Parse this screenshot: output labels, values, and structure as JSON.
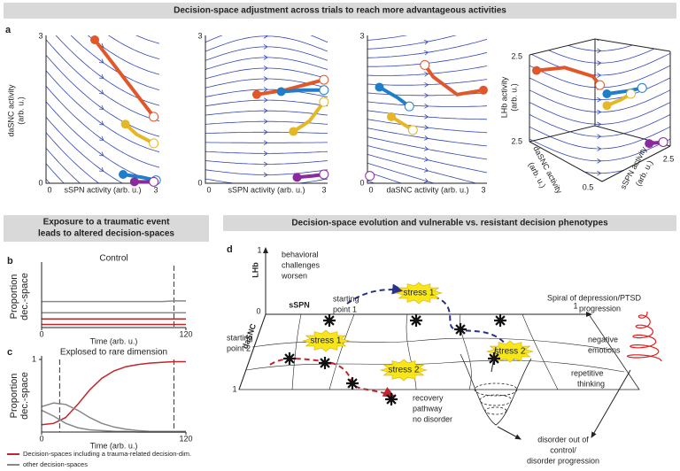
{
  "title": "Decision-space adjustment across trials to reach more advantageous activities",
  "panel_a": {
    "label": "a",
    "plots": [
      {
        "ylabel": [
          "daSNC activity",
          "(arb. u.)"
        ],
        "xlabel": "sSPN activity (arb. u.)",
        "xticks": [
          "0",
          "3"
        ],
        "yticks": [
          "0",
          "3"
        ]
      },
      {
        "xlabel": "sSPN activity (arb. u.)",
        "xticks": [
          "0",
          "3"
        ],
        "yticks": [
          "0",
          "3"
        ]
      },
      {
        "xlabel": "daSNC activity (arb. u.)",
        "xticks": [
          "0",
          "3"
        ],
        "yticks": [
          "0",
          "3"
        ]
      },
      {
        "zlabel": [
          "LHb activity",
          "(arb. u.)"
        ],
        "xlabel": [
          "daSNC activity",
          "(arb. u.)"
        ],
        "ylabel": [
          "sSPN activity",
          "(arb. u.)"
        ],
        "ticks": [
          "2.5",
          "2.5",
          "0.5",
          "2.5"
        ]
      }
    ]
  },
  "section_left": [
    "Exposure to a traumatic event",
    "leads to altered decision-spaces"
  ],
  "section_right": "Decision-space evolution and vulnerable vs. resistant decision phenotypes",
  "chart_data": [
    {
      "type": "line",
      "panel": "b",
      "title": "Control",
      "ylabel": [
        "Proportion",
        "dec.-space"
      ],
      "xlabel": "Time (arb. u.)",
      "x": [
        0,
        10,
        20,
        30,
        40,
        50,
        60,
        70,
        80,
        90,
        100,
        110,
        120
      ],
      "xlim": [
        0,
        120
      ],
      "xticks": [
        0,
        120
      ],
      "ylim": [
        0,
        1
      ],
      "vlines": [
        110
      ],
      "series": [
        {
          "color": "#888888",
          "values": [
            0.42,
            0.42,
            0.42,
            0.42,
            0.42,
            0.42,
            0.42,
            0.42,
            0.42,
            0.42,
            0.42,
            0.43,
            0.43
          ]
        },
        {
          "color": "#888888",
          "values": [
            0.24,
            0.24,
            0.24,
            0.24,
            0.24,
            0.24,
            0.24,
            0.24,
            0.24,
            0.24,
            0.24,
            0.24,
            0.24
          ]
        },
        {
          "color": "#c0262d",
          "values": [
            0.14,
            0.14,
            0.14,
            0.14,
            0.14,
            0.14,
            0.14,
            0.14,
            0.14,
            0.14,
            0.14,
            0.14,
            0.14
          ]
        },
        {
          "color": "#c0262d",
          "values": [
            0.05,
            0.05,
            0.05,
            0.05,
            0.05,
            0.05,
            0.05,
            0.05,
            0.05,
            0.05,
            0.05,
            0.05,
            0.05
          ]
        }
      ]
    },
    {
      "type": "line",
      "panel": "c",
      "title": "Explosed to rare dimension",
      "ylabel": [
        "Proportion",
        "dec.-space"
      ],
      "xlabel": "Time (arb. u.)",
      "x": [
        0,
        10,
        20,
        30,
        40,
        50,
        60,
        70,
        80,
        90,
        100,
        110,
        120
      ],
      "xlim": [
        0,
        120
      ],
      "xticks": [
        0,
        120
      ],
      "ylim": [
        0,
        1
      ],
      "yticks": [
        1
      ],
      "vlines": [
        15,
        110
      ],
      "series": [
        {
          "name": "Decision-spaces including a trauma-related decision-dim.",
          "color": "#c0262d",
          "values": [
            0.1,
            0.12,
            0.2,
            0.38,
            0.58,
            0.74,
            0.84,
            0.9,
            0.93,
            0.95,
            0.96,
            0.97,
            0.97
          ]
        },
        {
          "name": "other decision-spaces",
          "color": "#888888",
          "values": [
            0.35,
            0.4,
            0.38,
            0.3,
            0.2,
            0.12,
            0.07,
            0.04,
            0.02,
            0.01,
            0.01,
            0.01,
            0.01
          ]
        },
        {
          "color": "#888888",
          "values": [
            0.3,
            0.22,
            0.12,
            0.06,
            0.03,
            0.02,
            0.01,
            0.01,
            0,
            0,
            0,
            0,
            0
          ]
        }
      ]
    }
  ],
  "panel_d": {
    "label": "d",
    "axes": {
      "z": "LHb",
      "x": "sSPN",
      "y": "daSNC",
      "z_tick": "1",
      "origin": "0",
      "x_tick": "1",
      "y_tick": "1"
    },
    "behavioral": [
      "behavioral",
      "challenges",
      "worsen"
    ],
    "start1": [
      "starting",
      "point 1"
    ],
    "start2": [
      "starting",
      "point 2"
    ],
    "stress": [
      "stress 1",
      "stress 1",
      "stress 2",
      "stress 2"
    ],
    "recovery": [
      "recovery",
      "pathway",
      "no disorder"
    ],
    "spiral": [
      "Spiral of depression/PTSD",
      "progression"
    ],
    "negative": [
      "negative",
      "emotions"
    ],
    "repetitive": [
      "repetitive",
      "thinking"
    ],
    "disorder": [
      "disorder out of",
      "control/",
      "disorder progression"
    ]
  }
}
